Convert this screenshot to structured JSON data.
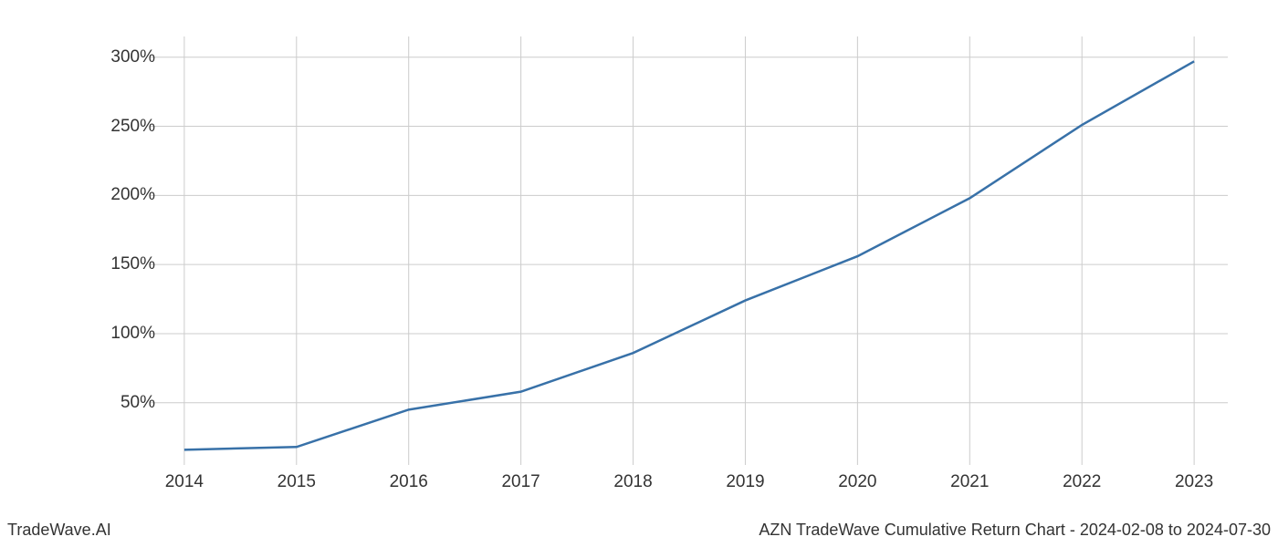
{
  "chart": {
    "type": "line",
    "background_color": "#ffffff",
    "grid_color": "#cccccc",
    "text_color": "#333333",
    "line_color": "#3871a8",
    "line_width": 2.5,
    "tick_fontsize": 19,
    "footer_fontsize": 18,
    "x_categories": [
      "2014",
      "2015",
      "2016",
      "2017",
      "2018",
      "2019",
      "2020",
      "2021",
      "2022",
      "2023"
    ],
    "y_values": [
      16,
      18,
      45,
      58,
      86,
      124,
      156,
      198,
      251,
      297
    ],
    "y_ticks": [
      50,
      100,
      150,
      200,
      250,
      300
    ],
    "y_tick_labels": [
      "50%",
      "100%",
      "150%",
      "200%",
      "250%",
      "300%"
    ],
    "ylim": [
      5,
      315
    ],
    "xlim": [
      -0.3,
      9.3
    ]
  },
  "footer": {
    "left": "TradeWave.AI",
    "right": "AZN TradeWave Cumulative Return Chart - 2024-02-08 to 2024-07-30"
  }
}
